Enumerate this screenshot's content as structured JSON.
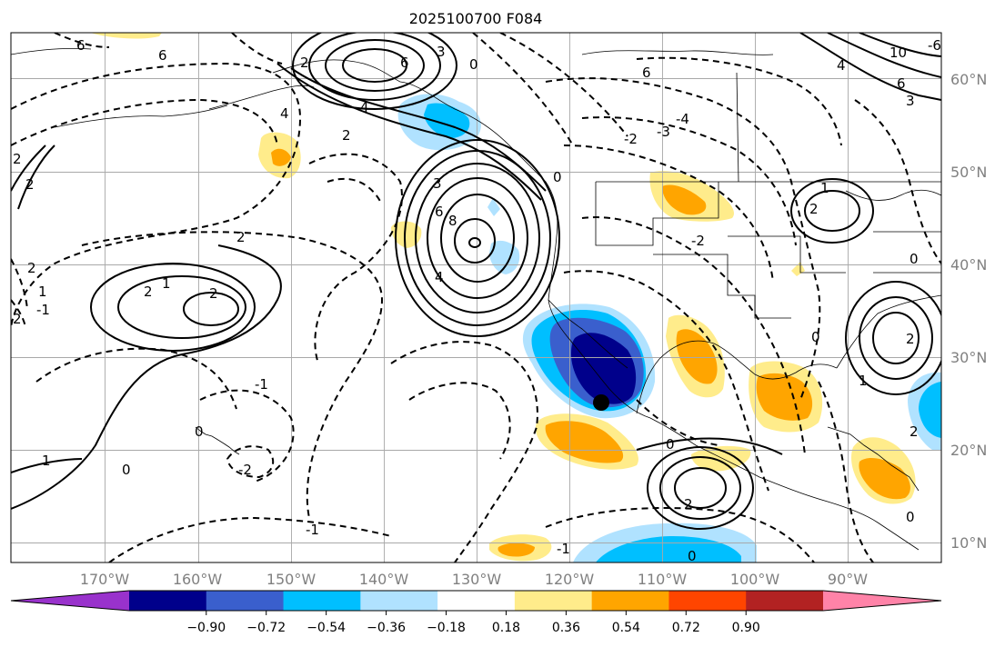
{
  "title": "2025100700 F084",
  "map": {
    "lon_labels": [
      "170°W",
      "160°W",
      "150°W",
      "140°W",
      "130°W",
      "120°W",
      "110°W",
      "100°W",
      "90°W"
    ],
    "lat_labels": [
      "60°N",
      "50°N",
      "40°N",
      "30°N",
      "20°N",
      "10°N"
    ]
  },
  "colorbar": {
    "tick_labels": [
      "−0.90",
      "−0.72",
      "−0.54",
      "−0.36",
      "−0.18",
      "0.18",
      "0.36",
      "0.54",
      "0.72",
      "0.90"
    ],
    "colors": [
      "#9932cc",
      "#00008b",
      "#3a5fcd",
      "#00bfff",
      "#b0e2ff",
      "#ffffff",
      "#ffec8b",
      "#ffa500",
      "#ff4500",
      "#b22222",
      "#ff83a8"
    ]
  },
  "contour_labels": [
    "6",
    "6",
    "6",
    "6",
    "3",
    "4",
    "4",
    "2",
    "2",
    "2",
    "2",
    "2",
    "2",
    "1",
    "1",
    "2",
    "3",
    "6",
    "8",
    "4",
    "2",
    "0",
    "0",
    "-1",
    "-1",
    "0",
    "-1",
    "0",
    "0",
    "-2",
    "1",
    "1",
    "2",
    "0",
    "0",
    "2",
    "-2",
    "-4",
    "-3",
    "-2",
    "0",
    "-6",
    "10",
    "6",
    "4",
    "3",
    "2",
    "2",
    "1",
    "-1",
    "2",
    "0"
  ]
}
